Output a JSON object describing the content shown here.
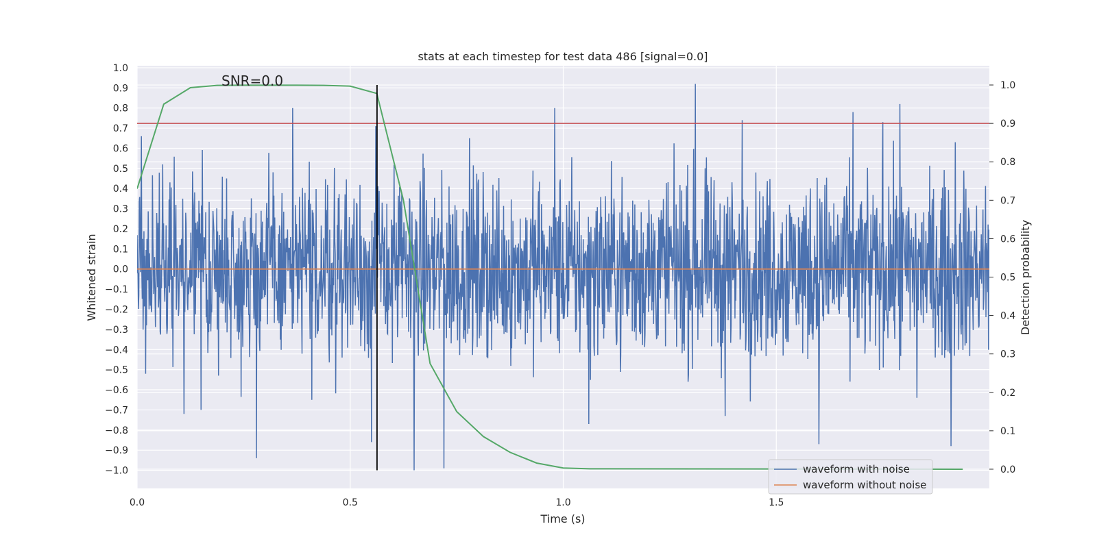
{
  "chart_data": {
    "type": "line",
    "title": "stats at each timestep for test data 486 [signal=0.0]",
    "annotation": "SNR=0.0",
    "xlabel": "Time (s)",
    "ylabel": "Whitened strain",
    "y2label": "Detection probability",
    "xlim": [
      0.0,
      2.0
    ],
    "ylim": [
      -1.09,
      1.01
    ],
    "y2lim": [
      -0.05,
      1.05
    ],
    "x_ticks": [
      "0.0",
      "0.5",
      "1.0",
      "1.5"
    ],
    "y_ticks": [
      "1.0",
      "0.9",
      "0.8",
      "0.7",
      "0.6",
      "0.5",
      "0.4",
      "0.3",
      "0.2",
      "0.1",
      "0.0",
      "-0.1",
      "-0.2",
      "-0.3",
      "-0.4",
      "-0.5",
      "-0.6",
      "-0.7",
      "-0.8",
      "-0.9",
      "-1.0"
    ],
    "y2_ticks": [
      "1.0",
      "0.9",
      "0.8",
      "0.7",
      "0.6",
      "0.5",
      "0.4",
      "0.3",
      "0.2",
      "0.1",
      "0.0"
    ],
    "grid": true,
    "legend_position": "lower right",
    "legend": [
      "waveform with noise",
      "waveform without noise"
    ],
    "threshold_probability": 0.9,
    "marker_time": 0.563,
    "series": [
      {
        "name": "waveform with noise",
        "color": "#4c72b0",
        "axis": "left",
        "description": "whitened noisy strain, ~2000 samples, roughly uniform noise between -0.5 and 0.5 with spikes",
        "sample_count": 2000,
        "spikes": [
          [
            0.01,
            0.66
          ],
          [
            0.06,
            0.52
          ],
          [
            0.11,
            -0.72
          ],
          [
            0.15,
            -0.7
          ],
          [
            0.21,
            0.45
          ],
          [
            0.28,
            -0.94
          ],
          [
            0.365,
            0.8
          ],
          [
            0.41,
            -0.65
          ],
          [
            0.55,
            -0.86
          ],
          [
            0.56,
            0.71
          ],
          [
            0.65,
            -1.0
          ],
          [
            0.72,
            -0.99
          ],
          [
            0.78,
            0.65
          ],
          [
            0.98,
            0.8
          ],
          [
            1.06,
            -0.77
          ],
          [
            1.31,
            0.92
          ],
          [
            1.38,
            -0.73
          ],
          [
            1.42,
            0.74
          ],
          [
            1.6,
            -0.87
          ],
          [
            1.68,
            0.78
          ],
          [
            1.75,
            0.73
          ],
          [
            1.79,
            0.82
          ],
          [
            1.83,
            -0.64
          ],
          [
            1.91,
            -0.88
          ],
          [
            1.92,
            0.63
          ]
        ]
      },
      {
        "name": "waveform without noise",
        "color": "#dd8452",
        "axis": "left",
        "x": [
          0.0,
          2.0
        ],
        "y": [
          0.0,
          0.0
        ]
      },
      {
        "color": "#55a868",
        "axis": "right",
        "x": [
          0.0,
          0.0625,
          0.125,
          0.1875,
          0.25,
          0.3125,
          0.375,
          0.4375,
          0.5,
          0.5625,
          0.625,
          0.6875,
          0.75,
          0.8125,
          0.875,
          0.9375,
          1.0,
          1.0625,
          1.9375
        ],
        "y": [
          0.73,
          0.95,
          0.993,
          0.999,
          0.9995,
          0.9995,
          0.9995,
          0.999,
          0.997,
          0.978,
          0.7,
          0.275,
          0.15,
          0.085,
          0.044,
          0.016,
          0.003,
          0.001,
          0.0
        ]
      }
    ],
    "colors": {
      "background": "#eaeaf2",
      "grid": "#ffffff",
      "threshold": "#c44e52",
      "marker": "#000000"
    }
  }
}
